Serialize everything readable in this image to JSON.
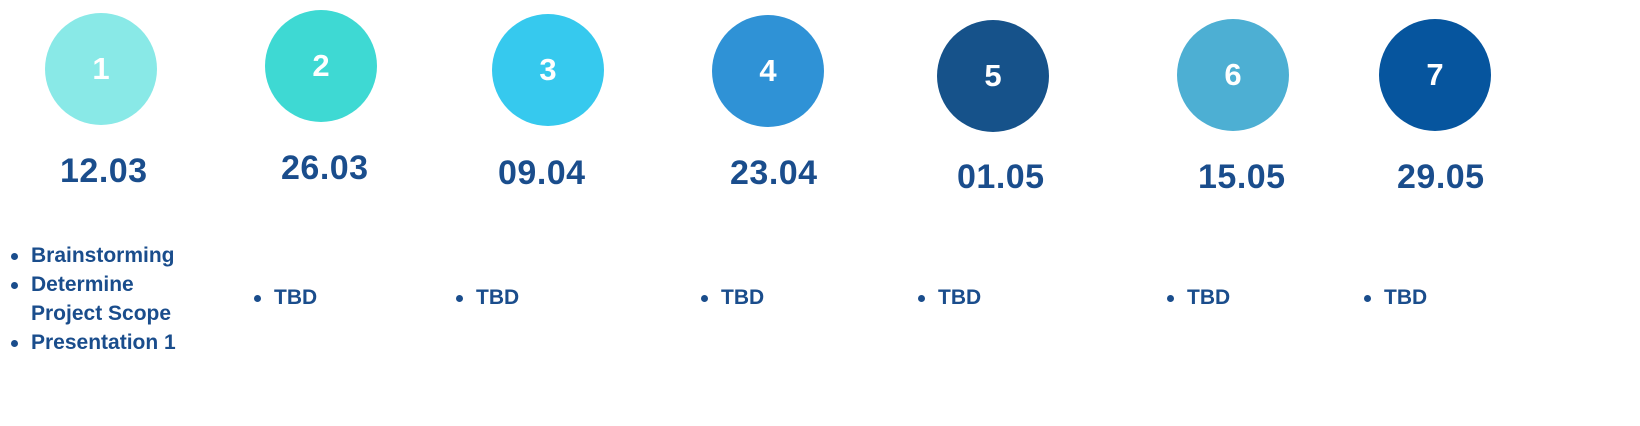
{
  "milestones": [
    {
      "number": "1",
      "date": "12.03",
      "color": "#89e9e7",
      "tasks": [
        "Brainstorming",
        "Determine\nProject Scope",
        "Presentation 1"
      ]
    },
    {
      "number": "2",
      "date": "26.03",
      "color": "#3ed9d3",
      "tasks": [
        "TBD"
      ]
    },
    {
      "number": "3",
      "date": "09.04",
      "color": "#36c9ee",
      "tasks": [
        "TBD"
      ]
    },
    {
      "number": "4",
      "date": "23.04",
      "color": "#2f92d6",
      "tasks": [
        "TBD"
      ]
    },
    {
      "number": "5",
      "date": "01.05",
      "color": "#16528a",
      "tasks": [
        "TBD"
      ]
    },
    {
      "number": "6",
      "date": "15.05",
      "color": "#4dafd3",
      "tasks": [
        "TBD"
      ]
    },
    {
      "number": "7",
      "date": "29.05",
      "color": "#06559e",
      "tasks": [
        "TBD"
      ]
    }
  ]
}
